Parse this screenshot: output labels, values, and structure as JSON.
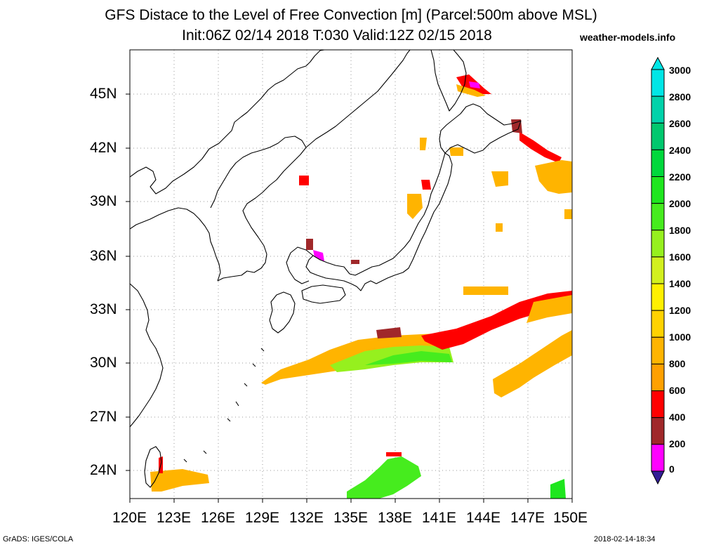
{
  "title": {
    "line1": "GFS Distace to the Level of Free Convection [m] (Parcel:500m above MSL)",
    "line2": "Init:06Z 02/14 2018 T:030 Valid:12Z 02/15 2018",
    "site": "weather-models.info"
  },
  "axes": {
    "lat_labels": [
      "45N",
      "42N",
      "39N",
      "36N",
      "33N",
      "30N",
      "27N",
      "24N"
    ],
    "lon_labels": [
      "120E",
      "123E",
      "126E",
      "129E",
      "132E",
      "135E",
      "138E",
      "141E",
      "144E",
      "147E",
      "150E"
    ]
  },
  "colorbar": {
    "labels": [
      "3000",
      "2800",
      "2600",
      "2400",
      "2200",
      "2000",
      "1800",
      "1600",
      "1400",
      "1200",
      "1000",
      "800",
      "600",
      "400",
      "200",
      "0"
    ],
    "colors": [
      "#00e6e6",
      "#00d2aa",
      "#00c86e",
      "#00d83c",
      "#1ee61e",
      "#46ec1e",
      "#96f01e",
      "#d2f01e",
      "#fff000",
      "#ffd200",
      "#ffb400",
      "#ffa000",
      "#ff0000",
      "#a0282a",
      "#ff00ff",
      "#321e96"
    ]
  },
  "footer": {
    "left": "GrADS: IGES/COLA",
    "right": "2018-02-14-18:34"
  }
}
